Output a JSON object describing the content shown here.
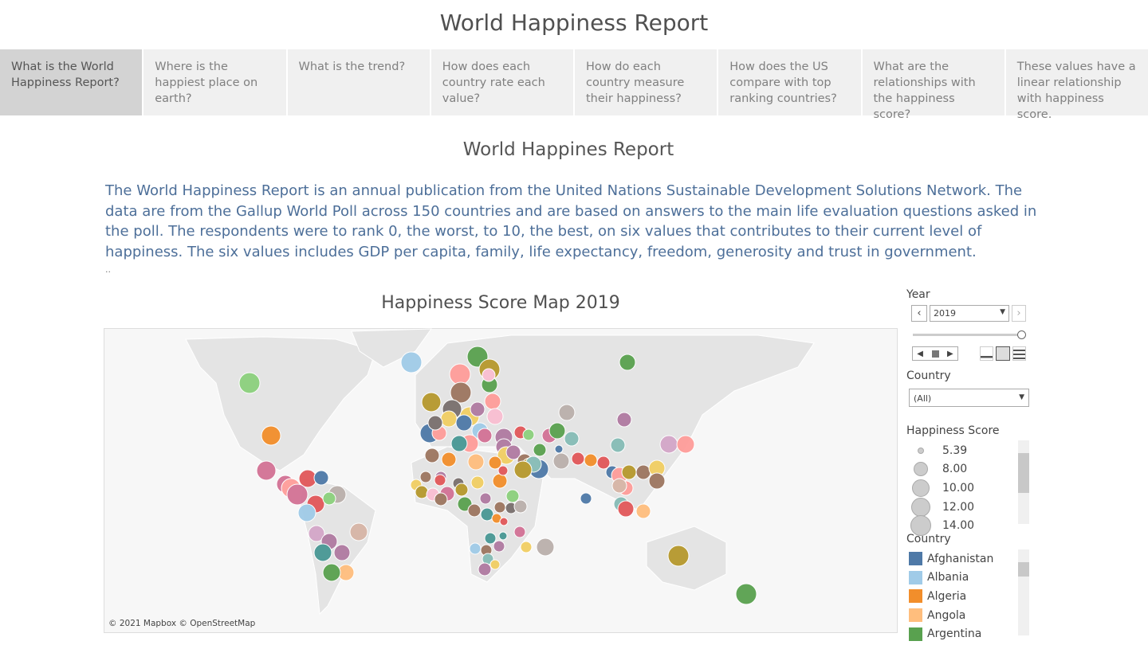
{
  "header": {
    "title": "World Happiness Report"
  },
  "tabs": [
    "What is the World Happiness Report?",
    "Where is the happiest place on earth?",
    "What is the trend?",
    "How does each country rate each value?",
    "How do each country measure their happiness?",
    "How does the US compare with top ranking countries?",
    "What are the relationships with the happiness score?",
    "These values have a linear relationship with happiness score."
  ],
  "section": {
    "title": "World Happines Report",
    "description": "The World Happiness Report is an annual publication from the United Nations Sustainable Development Solutions Network. The data are from the Gallup World Poll across 150 countries and are based on answers to the main life evaluation questions asked in the poll. The respondents were to rank 0, the worst, to 10, the best, on six values that contributes to their current level of happiness. The six values includes GDP per capita, family, life expectancy, freedom, generosity and trust in government.",
    "note": ".."
  },
  "map": {
    "title": "Happiness Score Map 2019",
    "attribution": "© 2021 Mapbox © OpenStreetMap"
  },
  "filters": {
    "year": {
      "label": "Year",
      "value": "2019"
    },
    "country": {
      "label": "Country",
      "value": "(All)"
    }
  },
  "size_legend": {
    "title": "Happiness Score",
    "items": [
      "5.39",
      "8.00",
      "10.00",
      "12.00",
      "14.00"
    ]
  },
  "color_legend": {
    "title": "Country",
    "items": [
      {
        "name": "Afghanistan",
        "color": "#4e79a7"
      },
      {
        "name": "Albania",
        "color": "#a0cbe8"
      },
      {
        "name": "Algeria",
        "color": "#f28e2b"
      },
      {
        "name": "Angola",
        "color": "#ffbe7d"
      },
      {
        "name": "Argentina",
        "color": "#59a14f"
      }
    ]
  }
}
